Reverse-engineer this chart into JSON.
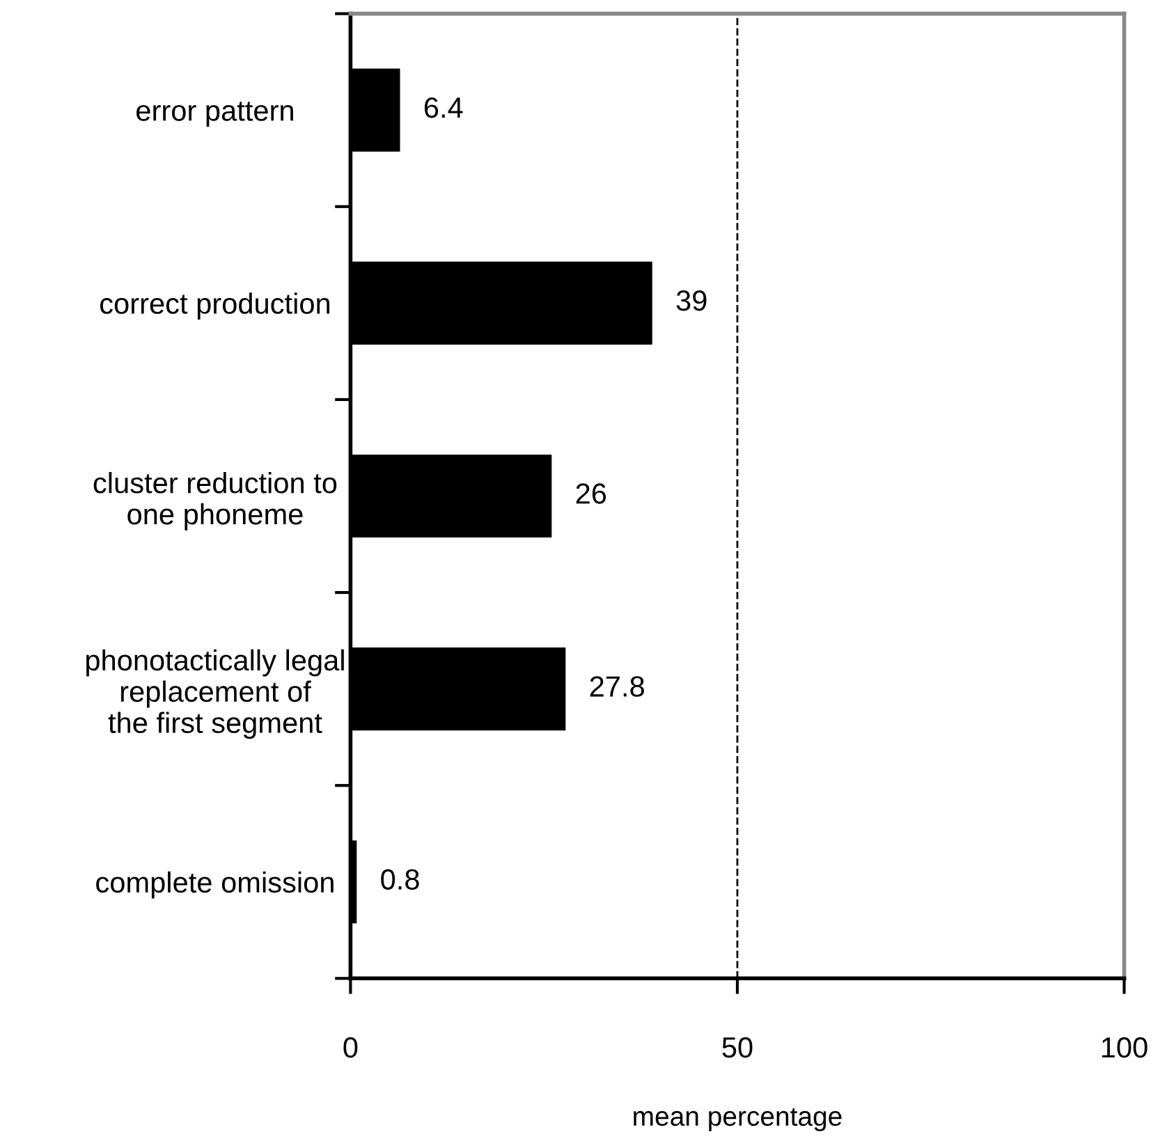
{
  "chart_data": {
    "type": "bar",
    "orientation": "horizontal",
    "categories": [
      "error pattern",
      "correct production",
      "cluster reduction to\none phoneme",
      "phonotactically legal\nreplacement of\nthe first segment",
      "complete omission"
    ],
    "values": [
      6.4,
      39,
      26,
      27.8,
      0.8
    ],
    "color": "#000000",
    "data_labels": true,
    "xlabel": "mean percentage",
    "xlim": [
      0,
      100
    ],
    "xticks": [
      0,
      50,
      100
    ],
    "ref_lines": [
      {
        "axis": "x",
        "value": 50,
        "line_style": "dashed",
        "color": "#000000"
      }
    ],
    "grid": false
  }
}
